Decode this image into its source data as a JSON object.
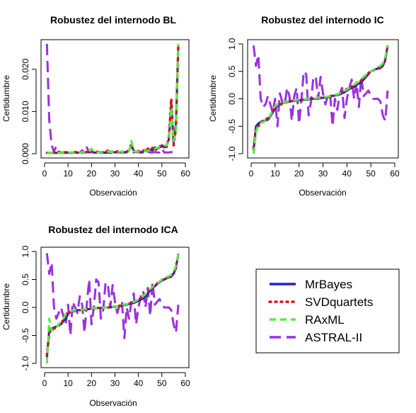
{
  "chart_data": [
    {
      "type": "line",
      "title": "Robustez del internodo BL",
      "xlabel": "Observación",
      "ylabel": "Certidumbre",
      "xlim": [
        0,
        60
      ],
      "ylim": [
        0,
        0.026
      ],
      "xticks": [
        "0",
        "10",
        "20",
        "30",
        "40",
        "50",
        "60"
      ],
      "yticks": [
        "0.000",
        "0.010",
        "0.020"
      ],
      "x": [
        1,
        2,
        3,
        4,
        5,
        6,
        7,
        8,
        9,
        10,
        11,
        12,
        13,
        14,
        15,
        16,
        17,
        18,
        19,
        20,
        21,
        22,
        23,
        24,
        25,
        26,
        27,
        28,
        29,
        30,
        31,
        32,
        33,
        34,
        35,
        36,
        37,
        38,
        39,
        40,
        41,
        42,
        43,
        44,
        45,
        46,
        47,
        48,
        49,
        50,
        51,
        52,
        53,
        54,
        55,
        56,
        57
      ],
      "series": [
        {
          "name": "MrBayes",
          "values": [
            0.0002,
            0.0002,
            0.0002,
            0.0002,
            0.0002,
            0.0002,
            0.0002,
            0.0002,
            0.0003,
            0.0002,
            0.0003,
            0.0002,
            0.0003,
            0.0002,
            0.0003,
            0.0003,
            0.0003,
            0.0004,
            0.0004,
            0.0006,
            0.0003,
            0.0002,
            0.0004,
            0.0002,
            0.0003,
            0.0002,
            0.0003,
            0.0002,
            0.0004,
            0.0003,
            0.0006,
            0.0003,
            0.0004,
            0.0003,
            0.0005,
            0.0008,
            0.002,
            0.0008,
            0.0004,
            0.0007,
            0.0003,
            0.0005,
            0.0008,
            0.0005,
            0.0009,
            0.0008,
            0.0015,
            0.0012,
            0.0015,
            0.002,
            0.0015,
            0.0018,
            0.0035,
            0.012,
            0.0025,
            0.007,
            0.0255
          ]
        },
        {
          "name": "SVDquartets",
          "values": [
            0.0002,
            0.0002,
            0.0002,
            0.0002,
            0.0002,
            0.0002,
            0.0002,
            0.0003,
            0.0002,
            0.0003,
            0.0002,
            0.0003,
            0.0004,
            0.0003,
            0.0003,
            0.0005,
            0.0003,
            0.0004,
            0.0008,
            0.0005,
            0.0004,
            0.0003,
            0.0006,
            0.0003,
            0.0004,
            0.0003,
            0.0008,
            0.0003,
            0.0005,
            0.0004,
            0.0004,
            0.0006,
            0.0005,
            0.0004,
            0.0004,
            0.0007,
            0.0025,
            0.0007,
            0.0005,
            0.0006,
            0.0004,
            0.0008,
            0.0005,
            0.0012,
            0.0008,
            0.0014,
            0.0008,
            0.0012,
            0.0018,
            0.0016,
            0.0018,
            0.0016,
            0.004,
            0.013,
            0.002,
            0.006,
            0.0258
          ]
        },
        {
          "name": "RAxML",
          "values": [
            0.0002,
            0.0002,
            0.0002,
            0.0002,
            0.0002,
            0.0002,
            0.0002,
            0.0002,
            0.0002,
            0.0002,
            0.0003,
            0.0003,
            0.0003,
            0.0003,
            0.0003,
            0.0004,
            0.0004,
            0.0003,
            0.0006,
            0.0012,
            0.0004,
            0.0003,
            0.0003,
            0.0003,
            0.0004,
            0.0004,
            0.0005,
            0.0004,
            0.0004,
            0.0004,
            0.0004,
            0.0005,
            0.0005,
            0.0004,
            0.0005,
            0.0006,
            0.003,
            0.0006,
            0.0005,
            0.0005,
            0.0005,
            0.0006,
            0.0006,
            0.0007,
            0.0008,
            0.001,
            0.0012,
            0.0014,
            0.0016,
            0.0018,
            0.002,
            0.002,
            0.003,
            0.011,
            0.003,
            0.005,
            0.026
          ]
        },
        {
          "name": "ASTRAL-II",
          "values": [
            0.026,
            0.008,
            0.002,
            0.0005,
            0.0018,
            0.0005,
            0.0003,
            0.0003,
            0.0004,
            0.0003,
            0.0005,
            0.0003,
            0.0004,
            0.0003,
            0.0003,
            0.0008,
            0.0003,
            0.0015,
            0.0003,
            0.0004,
            0.0003,
            0.0003,
            0.0005,
            0.0003,
            0.0003,
            0.0003,
            0.0003,
            0.0006,
            0.0003,
            0.0003,
            0.0003,
            0.0004,
            0.0003,
            0.0003,
            0.0003,
            0.0003,
            0.0003,
            0.0003,
            0.0005,
            0.0003,
            0.0003,
            0.0003,
            0.0003,
            0.0006,
            0.0003,
            0.0003,
            0.0004,
            0.0003,
            0.0003,
            0.0012,
            0.0003,
            0.0003,
            0.0003,
            0.0004,
            0.0003,
            0.0003,
            0.0004
          ]
        }
      ]
    },
    {
      "type": "line",
      "title": "Robustez del internodo IC",
      "xlabel": "Observación",
      "ylabel": "Certidumbre",
      "xlim": [
        0,
        60
      ],
      "ylim": [
        -1,
        1
      ],
      "xticks": [
        "0",
        "10",
        "20",
        "30",
        "40",
        "50",
        "60"
      ],
      "yticks": [
        "-1.0",
        "-0.5",
        "0.0",
        "0.5",
        "1.0"
      ],
      "x": [
        1,
        2,
        3,
        4,
        5,
        6,
        7,
        8,
        9,
        10,
        11,
        12,
        13,
        14,
        15,
        16,
        17,
        18,
        19,
        20,
        21,
        22,
        23,
        24,
        25,
        26,
        27,
        28,
        29,
        30,
        31,
        32,
        33,
        34,
        35,
        36,
        37,
        38,
        39,
        40,
        41,
        42,
        43,
        44,
        45,
        46,
        47,
        48,
        49,
        50,
        51,
        52,
        53,
        54,
        55,
        56,
        57
      ],
      "series": [
        {
          "name": "MrBayes",
          "values": [
            -0.95,
            -0.5,
            -0.45,
            -0.42,
            -0.4,
            -0.4,
            -0.38,
            -0.32,
            -0.25,
            -0.18,
            -0.12,
            -0.1,
            -0.08,
            -0.07,
            -0.06,
            -0.05,
            -0.04,
            -0.04,
            -0.03,
            -0.03,
            -0.02,
            -0.02,
            -0.01,
            -0.01,
            0.0,
            0.0,
            0.0,
            0.01,
            0.01,
            0.02,
            0.02,
            0.03,
            0.04,
            0.05,
            0.06,
            0.07,
            0.08,
            0.1,
            0.12,
            0.15,
            0.18,
            0.2,
            0.22,
            0.25,
            0.28,
            0.3,
            0.35,
            0.4,
            0.45,
            0.5,
            0.52,
            0.54,
            0.55,
            0.56,
            0.6,
            0.7,
            0.97
          ]
        },
        {
          "name": "SVDquartets",
          "values": [
            -0.9,
            -0.55,
            -0.5,
            -0.45,
            -0.4,
            -0.38,
            -0.35,
            -0.3,
            -0.22,
            -0.15,
            -0.1,
            -0.12,
            -0.08,
            -0.06,
            -0.05,
            -0.04,
            -0.04,
            -0.03,
            -0.03,
            -0.02,
            -0.02,
            -0.01,
            -0.01,
            0.0,
            0.0,
            0.0,
            0.01,
            0.01,
            0.02,
            0.02,
            0.03,
            0.04,
            0.05,
            0.06,
            0.07,
            0.08,
            0.1,
            0.12,
            0.15,
            0.18,
            0.2,
            0.22,
            0.25,
            0.28,
            0.3,
            0.33,
            0.38,
            0.42,
            0.47,
            0.5,
            0.52,
            0.54,
            0.56,
            0.58,
            0.62,
            0.72,
            0.96
          ]
        },
        {
          "name": "RAxML",
          "values": [
            -1.0,
            -0.6,
            -0.48,
            -0.44,
            -0.42,
            -0.4,
            -0.36,
            -0.3,
            -0.2,
            -0.14,
            -0.1,
            -0.09,
            -0.08,
            -0.06,
            -0.05,
            -0.04,
            -0.03,
            -0.03,
            -0.02,
            -0.02,
            -0.01,
            -0.01,
            0.0,
            0.0,
            0.0,
            0.01,
            0.01,
            0.02,
            0.02,
            0.02,
            0.03,
            0.04,
            0.05,
            0.06,
            0.07,
            0.08,
            0.1,
            0.12,
            0.14,
            0.17,
            0.2,
            0.23,
            0.26,
            0.28,
            0.32,
            0.36,
            0.4,
            0.44,
            0.48,
            0.5,
            0.53,
            0.55,
            0.57,
            0.6,
            0.65,
            0.75,
            0.98
          ]
        },
        {
          "name": "ASTRAL-II",
          "values": [
            0.97,
            0.6,
            0.8,
            0.0,
            -0.15,
            -0.1,
            0.05,
            -0.1,
            -0.25,
            0.0,
            -0.5,
            0.1,
            -0.05,
            -0.1,
            0.2,
            0.05,
            -0.4,
            0.05,
            0.2,
            -0.45,
            0.0,
            0.5,
            0.45,
            -0.3,
            -0.05,
            0.4,
            0.4,
            0.0,
            0.4,
            0.1,
            -0.1,
            0.05,
            0.1,
            -0.5,
            0.0,
            -0.2,
            0.1,
            0.2,
            -0.35,
            0.0,
            0.2,
            0.35,
            0.0,
            0.3,
            -0.15,
            0.4,
            0.05,
            0.1,
            0.15,
            0.05,
            0.0,
            0.0,
            0.0,
            -0.05,
            -0.3,
            -0.4,
            0.15
          ]
        }
      ]
    },
    {
      "type": "line",
      "title": "Robustez del internodo ICA",
      "xlabel": "Observación",
      "ylabel": "Certidumbre",
      "xlim": [
        0,
        60
      ],
      "ylim": [
        -1,
        1
      ],
      "xticks": [
        "0",
        "10",
        "20",
        "30",
        "40",
        "50",
        "60"
      ],
      "yticks": [
        "-1.0",
        "-0.5",
        "0.0",
        "0.5",
        "1.0"
      ],
      "x": [
        1,
        2,
        3,
        4,
        5,
        6,
        7,
        8,
        9,
        10,
        11,
        12,
        13,
        14,
        15,
        16,
        17,
        18,
        19,
        20,
        21,
        22,
        23,
        24,
        25,
        26,
        27,
        28,
        29,
        30,
        31,
        32,
        33,
        34,
        35,
        36,
        37,
        38,
        39,
        40,
        41,
        42,
        43,
        44,
        45,
        46,
        47,
        48,
        49,
        50,
        51,
        52,
        53,
        54,
        55,
        56,
        57
      ],
      "series": [
        {
          "name": "MrBayes",
          "values": [
            -0.9,
            -0.4,
            -0.38,
            -0.36,
            -0.34,
            -0.32,
            -0.3,
            -0.25,
            -0.2,
            -0.12,
            -0.08,
            -0.07,
            -0.06,
            -0.05,
            -0.05,
            -0.04,
            -0.04,
            -0.03,
            -0.03,
            -0.02,
            -0.02,
            -0.01,
            -0.01,
            -0.01,
            0.0,
            0.0,
            0.0,
            0.0,
            0.01,
            0.01,
            0.02,
            0.02,
            0.03,
            0.04,
            0.05,
            0.06,
            0.07,
            0.08,
            0.1,
            0.12,
            0.14,
            0.16,
            0.2,
            0.25,
            0.3,
            0.35,
            0.38,
            0.42,
            0.45,
            0.48,
            0.5,
            0.52,
            0.54,
            0.55,
            0.6,
            0.7,
            0.96
          ]
        },
        {
          "name": "SVDquartets",
          "values": [
            -0.85,
            -0.45,
            -0.4,
            -0.38,
            -0.35,
            -0.32,
            -0.3,
            -0.22,
            -0.15,
            -0.1,
            -0.08,
            -0.07,
            -0.06,
            -0.05,
            -0.05,
            -0.04,
            -0.04,
            -0.03,
            -0.03,
            -0.02,
            -0.02,
            -0.01,
            -0.01,
            0.0,
            0.0,
            0.0,
            0.0,
            0.01,
            0.01,
            0.02,
            0.02,
            0.03,
            0.04,
            0.05,
            0.06,
            0.07,
            0.08,
            0.1,
            0.12,
            0.14,
            0.17,
            0.2,
            0.24,
            0.28,
            0.32,
            0.36,
            0.4,
            0.43,
            0.46,
            0.49,
            0.51,
            0.53,
            0.55,
            0.57,
            0.62,
            0.72,
            0.95
          ]
        },
        {
          "name": "RAxML",
          "values": [
            -1.0,
            -0.2,
            -0.42,
            -0.38,
            -0.36,
            -0.3,
            -0.25,
            -0.2,
            -0.12,
            -0.08,
            -0.07,
            -0.06,
            -0.05,
            -0.05,
            -0.04,
            -0.04,
            -0.03,
            -0.03,
            -0.02,
            -0.02,
            -0.01,
            -0.01,
            -0.01,
            0.0,
            0.0,
            0.0,
            0.01,
            0.01,
            0.01,
            0.02,
            0.02,
            0.03,
            0.04,
            0.05,
            0.06,
            0.07,
            0.08,
            0.1,
            0.12,
            0.14,
            0.16,
            0.2,
            0.24,
            0.28,
            0.33,
            0.37,
            0.4,
            0.43,
            0.46,
            0.5,
            0.52,
            0.54,
            0.56,
            0.58,
            0.64,
            0.74,
            0.97
          ]
        },
        {
          "name": "ASTRAL-II",
          "values": [
            0.97,
            0.6,
            0.8,
            0.0,
            -0.2,
            -0.1,
            0.0,
            -0.15,
            -0.3,
            0.05,
            -0.5,
            0.1,
            0.0,
            -0.1,
            0.2,
            0.05,
            -0.45,
            0.05,
            0.5,
            -0.3,
            0.0,
            0.5,
            0.45,
            -0.2,
            -0.05,
            0.45,
            0.4,
            0.0,
            0.4,
            0.1,
            -0.1,
            0.05,
            0.1,
            -0.55,
            0.0,
            -0.2,
            0.1,
            0.25,
            -0.3,
            0.0,
            0.2,
            0.3,
            0.0,
            0.35,
            -0.15,
            0.45,
            0.05,
            0.1,
            0.15,
            0.05,
            0.0,
            0.0,
            0.0,
            -0.05,
            -0.3,
            -0.45,
            0.05
          ]
        }
      ]
    }
  ],
  "legend": {
    "entries": [
      {
        "label": "MrBayes",
        "color": "#1f1fcc",
        "dash": "solid"
      },
      {
        "label": "SVDquartets",
        "color": "#dd1111",
        "dash": "dotted"
      },
      {
        "label": "RAxML",
        "color": "#55ee44",
        "dash": "dashed"
      },
      {
        "label": "ASTRAL-II",
        "color": "#9b30e0",
        "dash": "longdash"
      }
    ]
  }
}
